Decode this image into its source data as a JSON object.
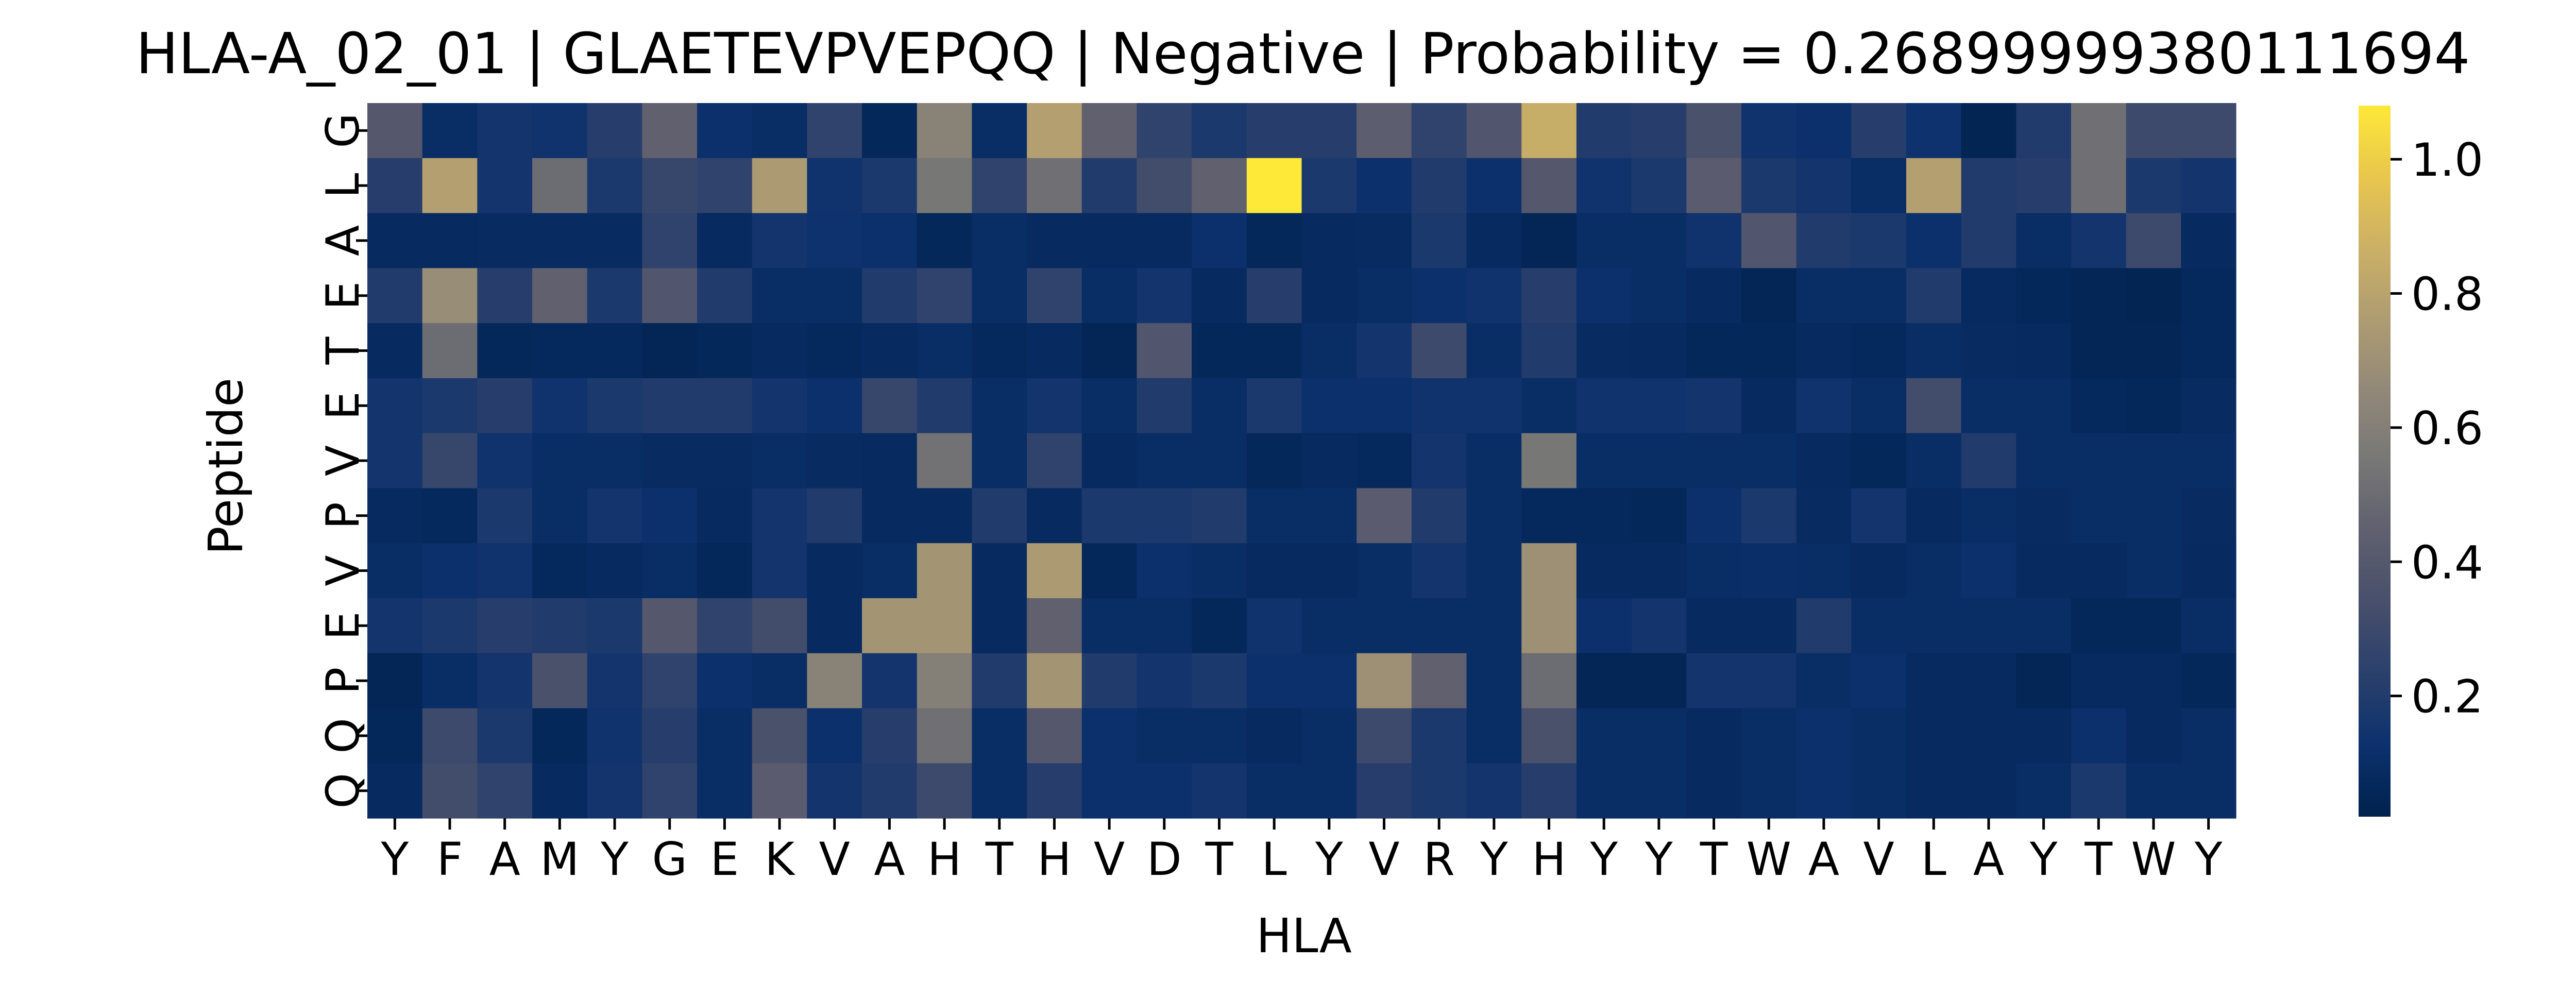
{
  "chart_data": {
    "type": "heatmap",
    "title": "HLA-A_02_01 | GLAETEVPVEPQQ | Negative | Probability = 0.26899999380111694",
    "xlabel": "HLA",
    "ylabel": "Peptide",
    "x_tick_labels": [
      "Y",
      "F",
      "A",
      "M",
      "Y",
      "G",
      "E",
      "K",
      "V",
      "A",
      "H",
      "T",
      "H",
      "V",
      "D",
      "T",
      "L",
      "Y",
      "V",
      "R",
      "Y",
      "H",
      "Y",
      "Y",
      "T",
      "W",
      "A",
      "V",
      "L",
      "A",
      "Y",
      "T",
      "W",
      "Y"
    ],
    "y_tick_labels": [
      "G",
      "L",
      "A",
      "E",
      "T",
      "E",
      "V",
      "P",
      "V",
      "E",
      "P",
      "Q",
      "Q"
    ],
    "colorbar": {
      "colormap": "cividis",
      "range": [
        0.02,
        1.08
      ],
      "ticks": [
        0.2,
        0.4,
        0.6,
        0.8,
        1.0
      ],
      "tick_labels": [
        "0.2",
        "0.4",
        "0.6",
        "0.8",
        "1.0"
      ]
    },
    "values": [
      [
        0.4,
        0.1,
        0.15,
        0.14,
        0.22,
        0.45,
        0.12,
        0.1,
        0.25,
        0.06,
        0.62,
        0.1,
        0.78,
        0.45,
        0.25,
        0.18,
        0.22,
        0.22,
        0.43,
        0.25,
        0.38,
        0.85,
        0.2,
        0.22,
        0.35,
        0.14,
        0.12,
        0.22,
        0.13,
        0.04,
        0.2,
        0.52,
        0.3,
        0.3
      ],
      [
        0.22,
        0.78,
        0.15,
        0.5,
        0.18,
        0.28,
        0.25,
        0.75,
        0.14,
        0.18,
        0.55,
        0.25,
        0.52,
        0.2,
        0.32,
        0.45,
        1.08,
        0.18,
        0.12,
        0.2,
        0.12,
        0.4,
        0.14,
        0.18,
        0.42,
        0.18,
        0.15,
        0.1,
        0.78,
        0.2,
        0.22,
        0.52,
        0.18,
        0.15
      ],
      [
        0.08,
        0.08,
        0.09,
        0.09,
        0.09,
        0.25,
        0.08,
        0.15,
        0.13,
        0.12,
        0.06,
        0.1,
        0.08,
        0.08,
        0.08,
        0.12,
        0.06,
        0.08,
        0.09,
        0.18,
        0.08,
        0.05,
        0.1,
        0.1,
        0.14,
        0.38,
        0.2,
        0.18,
        0.12,
        0.2,
        0.1,
        0.15,
        0.3,
        0.08
      ],
      [
        0.2,
        0.68,
        0.22,
        0.45,
        0.18,
        0.38,
        0.2,
        0.1,
        0.1,
        0.2,
        0.25,
        0.1,
        0.25,
        0.1,
        0.15,
        0.08,
        0.22,
        0.08,
        0.1,
        0.12,
        0.14,
        0.22,
        0.12,
        0.1,
        0.08,
        0.05,
        0.1,
        0.1,
        0.2,
        0.08,
        0.06,
        0.05,
        0.04,
        0.07
      ],
      [
        0.08,
        0.5,
        0.06,
        0.07,
        0.07,
        0.05,
        0.06,
        0.08,
        0.07,
        0.08,
        0.1,
        0.07,
        0.08,
        0.05,
        0.38,
        0.06,
        0.06,
        0.1,
        0.15,
        0.3,
        0.1,
        0.2,
        0.09,
        0.08,
        0.06,
        0.06,
        0.08,
        0.07,
        0.1,
        0.09,
        0.08,
        0.05,
        0.05,
        0.07
      ],
      [
        0.15,
        0.18,
        0.22,
        0.14,
        0.18,
        0.2,
        0.2,
        0.15,
        0.12,
        0.28,
        0.2,
        0.1,
        0.15,
        0.1,
        0.2,
        0.1,
        0.18,
        0.12,
        0.12,
        0.14,
        0.14,
        0.1,
        0.14,
        0.14,
        0.15,
        0.08,
        0.14,
        0.1,
        0.32,
        0.1,
        0.1,
        0.07,
        0.06,
        0.09
      ],
      [
        0.15,
        0.28,
        0.14,
        0.1,
        0.1,
        0.09,
        0.09,
        0.1,
        0.09,
        0.08,
        0.53,
        0.1,
        0.25,
        0.08,
        0.1,
        0.1,
        0.06,
        0.08,
        0.07,
        0.15,
        0.1,
        0.55,
        0.1,
        0.1,
        0.1,
        0.1,
        0.08,
        0.06,
        0.1,
        0.2,
        0.1,
        0.1,
        0.1,
        0.1
      ],
      [
        0.08,
        0.07,
        0.18,
        0.1,
        0.15,
        0.12,
        0.08,
        0.15,
        0.2,
        0.08,
        0.08,
        0.2,
        0.08,
        0.18,
        0.18,
        0.2,
        0.1,
        0.1,
        0.42,
        0.2,
        0.1,
        0.07,
        0.07,
        0.06,
        0.12,
        0.18,
        0.09,
        0.15,
        0.08,
        0.1,
        0.09,
        0.1,
        0.1,
        0.09
      ],
      [
        0.1,
        0.12,
        0.14,
        0.07,
        0.08,
        0.1,
        0.06,
        0.15,
        0.08,
        0.1,
        0.72,
        0.08,
        0.75,
        0.06,
        0.12,
        0.1,
        0.08,
        0.08,
        0.1,
        0.15,
        0.1,
        0.7,
        0.08,
        0.08,
        0.1,
        0.11,
        0.1,
        0.08,
        0.1,
        0.12,
        0.08,
        0.08,
        0.1,
        0.08
      ],
      [
        0.15,
        0.18,
        0.22,
        0.2,
        0.18,
        0.4,
        0.25,
        0.32,
        0.08,
        0.72,
        0.72,
        0.08,
        0.45,
        0.1,
        0.1,
        0.06,
        0.14,
        0.1,
        0.1,
        0.1,
        0.1,
        0.7,
        0.12,
        0.15,
        0.08,
        0.08,
        0.2,
        0.1,
        0.1,
        0.1,
        0.1,
        0.06,
        0.06,
        0.1
      ],
      [
        0.05,
        0.1,
        0.15,
        0.35,
        0.15,
        0.25,
        0.12,
        0.1,
        0.62,
        0.15,
        0.6,
        0.2,
        0.72,
        0.2,
        0.15,
        0.18,
        0.12,
        0.12,
        0.7,
        0.45,
        0.1,
        0.5,
        0.05,
        0.05,
        0.15,
        0.15,
        0.1,
        0.12,
        0.08,
        0.08,
        0.05,
        0.08,
        0.08,
        0.06
      ],
      [
        0.06,
        0.3,
        0.18,
        0.06,
        0.14,
        0.22,
        0.1,
        0.35,
        0.12,
        0.22,
        0.52,
        0.1,
        0.4,
        0.12,
        0.1,
        0.1,
        0.08,
        0.1,
        0.3,
        0.18,
        0.1,
        0.35,
        0.1,
        0.1,
        0.08,
        0.1,
        0.12,
        0.1,
        0.08,
        0.08,
        0.08,
        0.12,
        0.08,
        0.1
      ],
      [
        0.08,
        0.32,
        0.25,
        0.08,
        0.15,
        0.25,
        0.1,
        0.42,
        0.15,
        0.2,
        0.3,
        0.1,
        0.22,
        0.12,
        0.12,
        0.15,
        0.1,
        0.1,
        0.22,
        0.18,
        0.15,
        0.22,
        0.1,
        0.1,
        0.08,
        0.1,
        0.12,
        0.1,
        0.08,
        0.08,
        0.1,
        0.18,
        0.1,
        0.1
      ]
    ]
  }
}
